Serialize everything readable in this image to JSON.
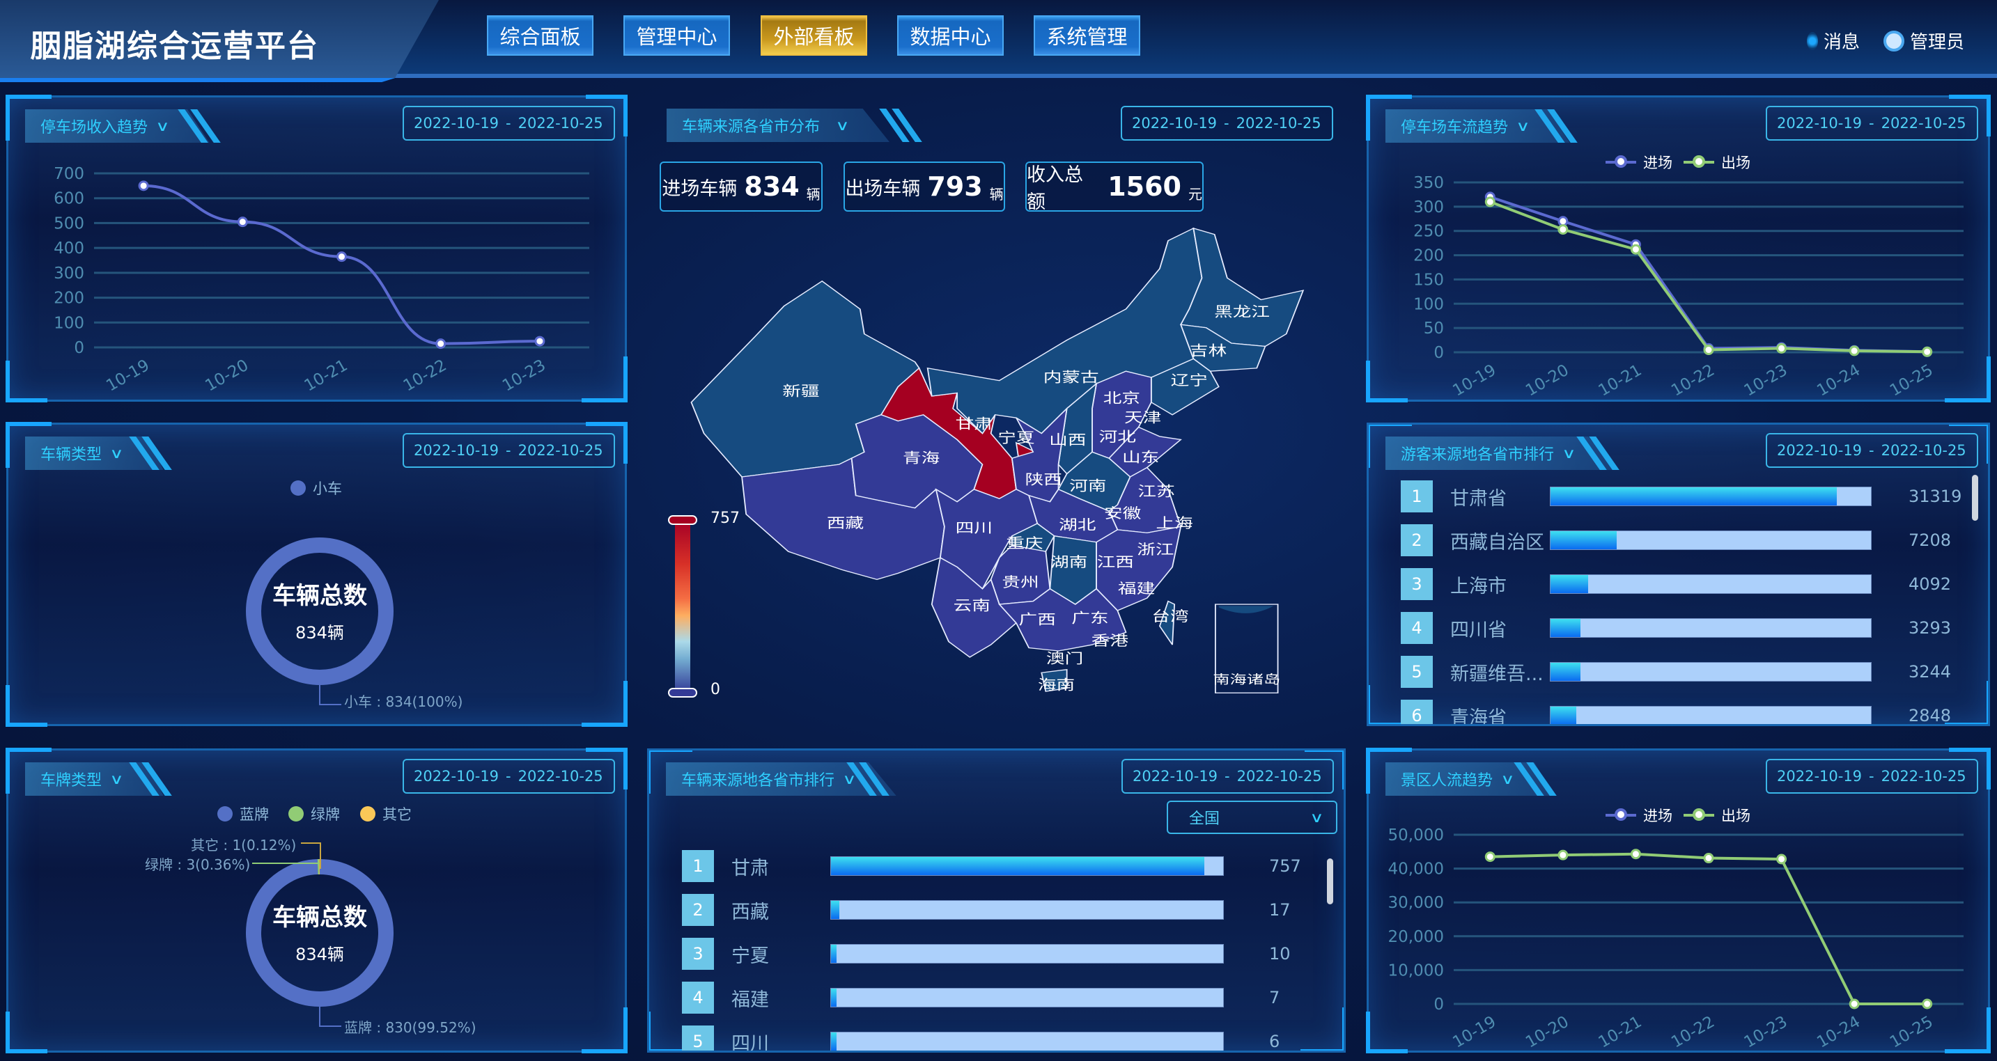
{
  "header": {
    "title": "胭脂湖综合运营平台",
    "nav": [
      {
        "label": "综合面板",
        "active": false
      },
      {
        "label": "管理中心",
        "active": false
      },
      {
        "label": "外部看板",
        "active": true
      },
      {
        "label": "数据中心",
        "active": false
      },
      {
        "label": "系统管理",
        "active": false
      }
    ],
    "messages_label": "消息",
    "user_label": "管理员"
  },
  "date_range": {
    "start": "2022-10-19",
    "sep": "-",
    "end": "2022-10-25"
  },
  "panels": {
    "income": {
      "title": "停车场收入趋势"
    },
    "vehicle_type": {
      "title": "车辆类型"
    },
    "plate_type": {
      "title": "车牌类型"
    },
    "map": {
      "title": "车辆来源各省市分布"
    },
    "vehicle_rank": {
      "title": "车辆来源地各省市排行",
      "select_value": "全国"
    },
    "flow": {
      "title": "停车场车流趋势"
    },
    "tourist_rank": {
      "title": "游客来源地各省市排行"
    },
    "scenic": {
      "title": "景区人流趋势"
    }
  },
  "stats": [
    {
      "label": "进场车辆",
      "value": "834",
      "unit": "辆"
    },
    {
      "label": "出场车辆",
      "value": "793",
      "unit": "辆"
    },
    {
      "label": "收入总额",
      "value": "1560",
      "unit": "元"
    }
  ],
  "map": {
    "visual_max": "757",
    "visual_min": "0",
    "colors": {
      "high": "#a50021",
      "mid": "#164b80",
      "low": "#333a96"
    },
    "provinces": [
      "新疆",
      "西藏",
      "青海",
      "甘肃",
      "宁夏",
      "内蒙古",
      "黑龙江",
      "吉林",
      "辽宁",
      "北京",
      "天津",
      "河北",
      "山西",
      "山东",
      "河南",
      "陕西",
      "江苏",
      "安徽",
      "上海",
      "湖北",
      "四川",
      "重庆",
      "湖南",
      "江西",
      "浙江",
      "福建",
      "贵州",
      "云南",
      "广西",
      "广东",
      "澳门",
      "香港",
      "海南",
      "台湾"
    ],
    "south_sea_label": "南海诸岛"
  },
  "vehicle_rank": [
    {
      "rank": "1",
      "name": "甘肃",
      "value": 757
    },
    {
      "rank": "2",
      "name": "西藏",
      "value": 17
    },
    {
      "rank": "3",
      "name": "宁夏",
      "value": 10
    },
    {
      "rank": "4",
      "name": "福建",
      "value": 7
    },
    {
      "rank": "5",
      "name": "四川",
      "value": 6
    }
  ],
  "tourist_rank": [
    {
      "rank": "1",
      "name": "甘肃省",
      "value": 31319
    },
    {
      "rank": "2",
      "name": "西藏自治区",
      "value": 7208
    },
    {
      "rank": "3",
      "name": "上海市",
      "value": 4092
    },
    {
      "rank": "4",
      "name": "四川省",
      "value": 3293
    },
    {
      "rank": "5",
      "name": "新疆维吾...",
      "value": 3244
    },
    {
      "rank": "6",
      "name": "青海省",
      "value": 2848
    }
  ],
  "chart_data": [
    {
      "id": "income",
      "type": "line",
      "smooth": true,
      "categories": [
        "10-19",
        "10-20",
        "10-21",
        "10-22",
        "10-23"
      ],
      "series": [
        {
          "values": [
            650,
            505,
            365,
            15,
            25
          ],
          "color": "#5b6ad0"
        }
      ],
      "ylim": [
        0,
        700
      ],
      "y_ticks": [
        "0",
        "100",
        "200",
        "300",
        "400",
        "500",
        "600",
        "700"
      ],
      "grid": true
    },
    {
      "id": "vehicle_type",
      "type": "pie",
      "donut": true,
      "legend": [
        "小车"
      ],
      "slices": [
        {
          "name": "小车",
          "value": 834,
          "label": "小车 : 834(100%)",
          "color": "#5470c6"
        }
      ],
      "center_title": "车辆总数",
      "center_value": "834辆"
    },
    {
      "id": "plate_type",
      "type": "pie",
      "donut": true,
      "legend": [
        "蓝牌",
        "绿牌",
        "其它"
      ],
      "slices": [
        {
          "name": "蓝牌",
          "value": 830,
          "label": "蓝牌 : 830(99.52%)",
          "color": "#5470c6"
        },
        {
          "name": "绿牌",
          "value": 3,
          "label": "绿牌 : 3(0.36%)",
          "color": "#91cc75"
        },
        {
          "name": "其它",
          "value": 1,
          "label": "其它 : 1(0.12%)",
          "color": "#fac858"
        }
      ],
      "center_title": "车辆总数",
      "center_value": "834辆"
    },
    {
      "id": "flow",
      "type": "line",
      "categories": [
        "10-19",
        "10-20",
        "10-21",
        "10-22",
        "10-23",
        "10-24",
        "10-25"
      ],
      "series": [
        {
          "name": "进场",
          "values": [
            320,
            270,
            222,
            8,
            10,
            4,
            1
          ],
          "color": "#5b6ad0"
        },
        {
          "name": "出场",
          "values": [
            310,
            253,
            212,
            5,
            8,
            3,
            1
          ],
          "color": "#91cc75"
        }
      ],
      "ylim": [
        0,
        350
      ],
      "y_ticks": [
        "0",
        "50",
        "100",
        "150",
        "200",
        "250",
        "300",
        "350"
      ],
      "grid": true,
      "legend": "top-center"
    },
    {
      "id": "scenic",
      "type": "line",
      "categories": [
        "10-19",
        "10-20",
        "10-21",
        "10-22",
        "10-23",
        "10-24",
        "10-25"
      ],
      "series": [
        {
          "name": "进场",
          "values": [
            null,
            null,
            null,
            null,
            null,
            null,
            null
          ],
          "color": "#5b6ad0"
        },
        {
          "name": "出场",
          "values": [
            43500,
            44000,
            44300,
            43100,
            42800,
            0,
            0
          ],
          "color": "#91cc75"
        }
      ],
      "ylim": [
        0,
        50000
      ],
      "y_ticks": [
        "0",
        "10,000",
        "20,000",
        "30,000",
        "40,000",
        "50,000"
      ],
      "grid": true,
      "legend": "top-center"
    }
  ]
}
